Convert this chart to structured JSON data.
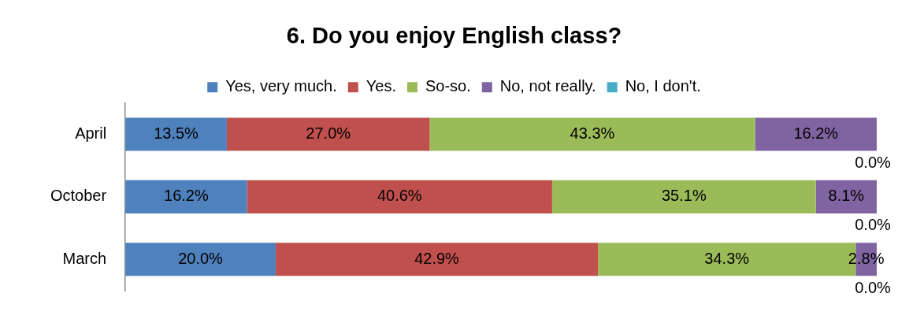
{
  "chart_data": {
    "type": "bar",
    "title": "6. Do you enjoy English class?",
    "orientation": "horizontal",
    "stacked": true,
    "categories": [
      "April",
      "October",
      "March"
    ],
    "legend": "top",
    "grid": false,
    "tick_labels": "y",
    "series": [
      {
        "name": "Yes, very much.",
        "color": "#4f81bd",
        "values": [
          13.5,
          16.2,
          20.0
        ],
        "value_labels": [
          "13.5%",
          "16.2%",
          "20.0%"
        ]
      },
      {
        "name": "Yes.",
        "color": "#c0504d",
        "values": [
          27.0,
          40.6,
          42.9
        ],
        "value_labels": [
          "27.0%",
          "40.6%",
          "42.9%"
        ]
      },
      {
        "name": "So-so.",
        "color": "#9bbb59",
        "values": [
          43.3,
          35.1,
          34.3
        ],
        "value_labels": [
          "43.3%",
          "35.1%",
          "34.3%"
        ]
      },
      {
        "name": "No, not really.",
        "color": "#8064a2",
        "values": [
          16.2,
          8.1,
          2.8
        ],
        "value_labels": [
          "16.2%",
          "8.1%",
          "2.8%"
        ]
      },
      {
        "name": "No, I don't.",
        "color": "#4bacc6",
        "values": [
          0.0,
          0.0,
          0.0
        ],
        "value_labels": [
          "0.0%",
          "0.0%",
          "0.0%"
        ]
      }
    ]
  }
}
